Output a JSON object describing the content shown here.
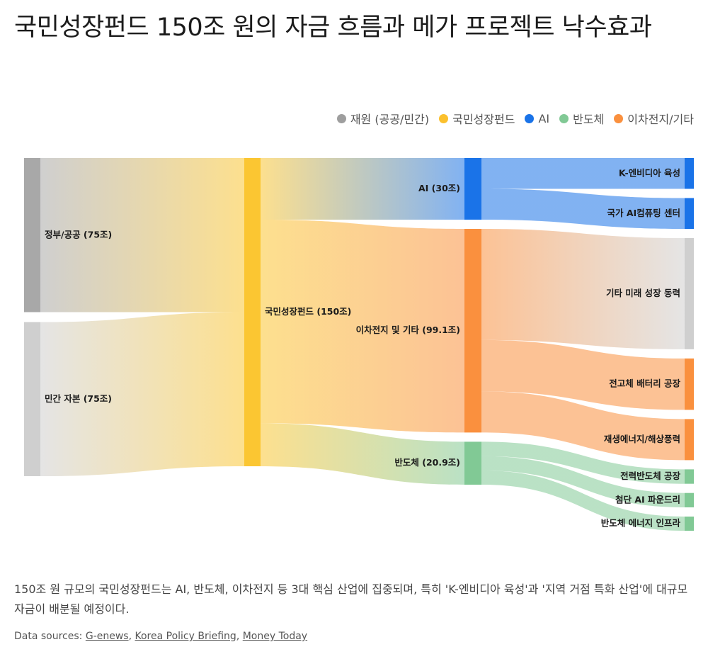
{
  "title": "국민성장펀드 150조 원의 자금 흐름과 메가 프로젝트 낙수효과",
  "legend": [
    {
      "label": "재원 (공공/민간)",
      "color": "#9e9e9e"
    },
    {
      "label": "국민성장펀드",
      "color": "#fbc02d"
    },
    {
      "label": "AI",
      "color": "#1a73e8"
    },
    {
      "label": "반도체",
      "color": "#81c995"
    },
    {
      "label": "이차전지/기타",
      "color": "#fa903e"
    }
  ],
  "chart_data": {
    "type": "sankey",
    "title": "국민성장펀드 150조 원의 자금 흐름과 메가 프로젝트 낙수효과",
    "unit": "조",
    "nodes": [
      {
        "id": "gov",
        "label": "정부/공공 (75조)",
        "value": 75,
        "column": 0,
        "color": "#a8a8a8"
      },
      {
        "id": "private",
        "label": "민간 자본 (75조)",
        "value": 75,
        "column": 0,
        "color": "#cfcfcf"
      },
      {
        "id": "fund",
        "label": "국민성장펀드 (150조)",
        "value": 150,
        "column": 1,
        "color": "#fbc632"
      },
      {
        "id": "ai",
        "label": "AI (30조)",
        "value": 30,
        "column": 2,
        "color": "#1a73e8"
      },
      {
        "id": "battery",
        "label": "이차전지 및 기타 (99.1조)",
        "value": 99.1,
        "column": 2,
        "color": "#fa903e"
      },
      {
        "id": "semi",
        "label": "반도체 (20.9조)",
        "value": 20.9,
        "column": 2,
        "color": "#81c995"
      },
      {
        "id": "knvidia",
        "label": "K-엔비디아 육성",
        "value": 15,
        "column": 3,
        "color": "#1a73e8"
      },
      {
        "id": "aicenter",
        "label": "국가 AI컴퓨팅 센터",
        "value": 15,
        "column": 3,
        "color": "#1a73e8"
      },
      {
        "id": "future",
        "label": "기타 미래 성장 동력",
        "value": 54.1,
        "column": 3,
        "color": "#cfcfcf"
      },
      {
        "id": "allsolid",
        "label": "전고체 배터리 공장",
        "value": 25,
        "column": 3,
        "color": "#fa903e"
      },
      {
        "id": "renew",
        "label": "재생에너지/해상풍력",
        "value": 20,
        "column": 3,
        "color": "#fa903e"
      },
      {
        "id": "powersemi",
        "label": "전력반도체 공장",
        "value": 7,
        "column": 3,
        "color": "#81c995"
      },
      {
        "id": "foundry",
        "label": "첨단 AI 파운드리",
        "value": 7,
        "column": 3,
        "color": "#81c995"
      },
      {
        "id": "semienergy",
        "label": "반도체 에너지 인프라",
        "value": 6.9,
        "column": 3,
        "color": "#81c995"
      }
    ],
    "links": [
      {
        "source": "gov",
        "target": "fund",
        "value": 75
      },
      {
        "source": "private",
        "target": "fund",
        "value": 75
      },
      {
        "source": "fund",
        "target": "ai",
        "value": 30
      },
      {
        "source": "fund",
        "target": "battery",
        "value": 99.1
      },
      {
        "source": "fund",
        "target": "semi",
        "value": 20.9
      },
      {
        "source": "ai",
        "target": "knvidia",
        "value": 15
      },
      {
        "source": "ai",
        "target": "aicenter",
        "value": 15
      },
      {
        "source": "battery",
        "target": "future",
        "value": 54.1
      },
      {
        "source": "battery",
        "target": "allsolid",
        "value": 25
      },
      {
        "source": "battery",
        "target": "renew",
        "value": 20
      },
      {
        "source": "semi",
        "target": "powersemi",
        "value": 7
      },
      {
        "source": "semi",
        "target": "foundry",
        "value": 7
      },
      {
        "source": "semi",
        "target": "semienergy",
        "value": 6.9
      }
    ]
  },
  "caption": "150조 원 규모의 국민성장펀드는 AI, 반도체, 이차전지 등 3대 핵심 산업에 집중되며, 특히 'K-엔비디아 육성'과 '지역 거점 특화 산업'에 대규모 자금이 배분될 예정이다.",
  "sources": {
    "prefix": "Data sources: ",
    "links": [
      "G-enews",
      "Korea Policy Briefing",
      "Money Today"
    ]
  }
}
